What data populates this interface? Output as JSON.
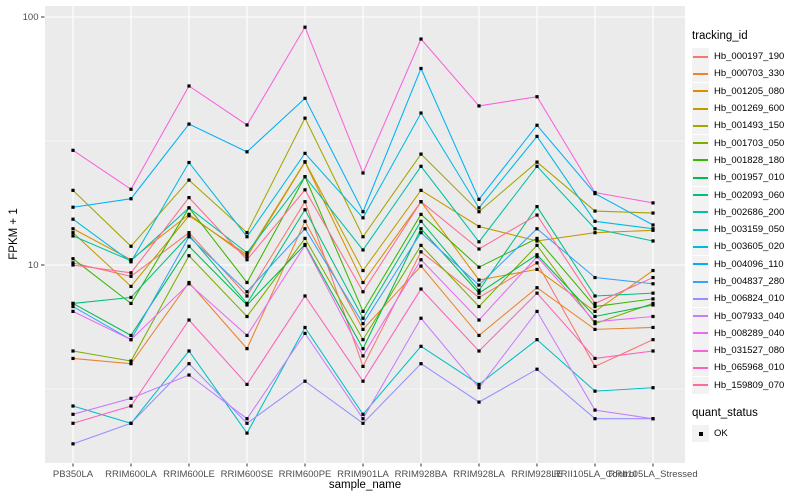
{
  "chart_data": {
    "type": "line",
    "title": "",
    "xlabel": "sample_name",
    "ylabel": "FPKM + 1",
    "legend_title": "tracking_id",
    "legend_position": "right",
    "status_legend": {
      "title": "quant_status",
      "label": "OK"
    },
    "point_shape": "filled-black-square",
    "y_scale": "log10",
    "ylim": [
      1.55,
      112
    ],
    "y_ticks": [
      10,
      100
    ],
    "y_tick_labels": [
      "10",
      "100"
    ],
    "y_minor_ticks": [
      3.162,
      31.62
    ],
    "grid": "white major+minor horizontal, white major vertical, on gray panel",
    "x_categories": [
      "PB350LA",
      "RRIM600LA",
      "RRIM600LE",
      "RRIM600SE",
      "RRIM600PE",
      "RRIM901LA",
      "RRIM928BA",
      "RRIM928LA",
      "RRIM928LE",
      "RRII105LA_Control",
      "RRII105LA_Stressed"
    ],
    "series": [
      {
        "name": "Hb_000197_190",
        "color": "#F8766D",
        "values": [
          10.2,
          9.0,
          13.5,
          7.5,
          18.0,
          3.9,
          11.3,
          7.4,
          10.2,
          3.9,
          5.0
        ]
      },
      {
        "name": "Hb_000703_330",
        "color": "#EA8331",
        "values": [
          4.2,
          4.0,
          8.5,
          4.6,
          15.0,
          5.5,
          9.9,
          5.2,
          8.1,
          5.5,
          5.6
        ]
      },
      {
        "name": "Hb_001205_080",
        "color": "#D89000",
        "values": [
          14.0,
          10.5,
          16.0,
          10.8,
          26.0,
          8.5,
          18.0,
          8.7,
          9.6,
          6.5,
          9.5
        ]
      },
      {
        "name": "Hb_001269_600",
        "color": "#C09B00",
        "values": [
          13.5,
          8.2,
          15.8,
          11.0,
          26.1,
          9.5,
          20.0,
          14.3,
          12.5,
          13.5,
          13.8
        ]
      },
      {
        "name": "Hb_001493_150",
        "color": "#A3A500",
        "values": [
          20.0,
          11.9,
          22.0,
          13.5,
          39.1,
          13.0,
          28.0,
          16.4,
          26.0,
          16.5,
          16.2
        ]
      },
      {
        "name": "Hb_001703_050",
        "color": "#7CAE00",
        "values": [
          4.5,
          4.1,
          10.9,
          6.2,
          12.8,
          5.0,
          12.0,
          6.8,
          12.0,
          5.8,
          7.0
        ]
      },
      {
        "name": "Hb_001828_180",
        "color": "#39B600",
        "values": [
          10.6,
          7.0,
          17.0,
          8.5,
          22.7,
          6.5,
          16.0,
          9.8,
          12.8,
          6.8,
          7.3
        ]
      },
      {
        "name": "Hb_001957_010",
        "color": "#00BB4E",
        "values": [
          7.0,
          5.2,
          11.9,
          6.9,
          12.1,
          4.6,
          14.0,
          7.7,
          11.0,
          6.2,
          6.9
        ]
      },
      {
        "name": "Hb_002093_060",
        "color": "#00BF7D",
        "values": [
          7.0,
          7.4,
          13.2,
          7.0,
          16.7,
          6.1,
          15.0,
          7.9,
          17.2,
          7.5,
          7.7
        ]
      },
      {
        "name": "Hb_002686_200",
        "color": "#00C1A3",
        "values": [
          13.1,
          10.4,
          17.0,
          11.2,
          22.7,
          11.5,
          25.0,
          12.4,
          25.0,
          14.0,
          12.5
        ]
      },
      {
        "name": "Hb_003159_050",
        "color": "#00BFC4",
        "values": [
          2.7,
          2.3,
          4.5,
          2.1,
          5.6,
          2.5,
          4.7,
          3.3,
          5.0,
          3.1,
          3.2
        ]
      },
      {
        "name": "Hb_003605_020",
        "color": "#00BAE0",
        "values": [
          15.3,
          10.3,
          25.9,
          13.0,
          28.2,
          15.5,
          41.0,
          17.0,
          33.0,
          15.0,
          14.0
        ]
      },
      {
        "name": "Hb_004096_110",
        "color": "#00B0F6",
        "values": [
          17.1,
          18.5,
          37.0,
          28.6,
          47.0,
          16.4,
          62.0,
          18.4,
          36.6,
          19.4,
          14.5
        ]
      },
      {
        "name": "Hb_004837_280",
        "color": "#35A2FF",
        "values": [
          6.8,
          5.0,
          13.0,
          7.8,
          14.0,
          5.8,
          13.5,
          8.3,
          14.0,
          8.9,
          8.4
        ]
      },
      {
        "name": "Hb_006824_010",
        "color": "#9590FF",
        "values": [
          1.9,
          2.3,
          4.0,
          2.3,
          3.4,
          2.3,
          4.0,
          2.8,
          3.8,
          2.4,
          2.4
        ]
      },
      {
        "name": "Hb_007933_040",
        "color": "#C77CFF",
        "values": [
          2.5,
          2.9,
          3.6,
          2.4,
          5.3,
          2.4,
          6.1,
          3.2,
          6.5,
          2.6,
          2.4
        ]
      },
      {
        "name": "Hb_008289_040",
        "color": "#E76BF3",
        "values": [
          6.5,
          5.0,
          8.4,
          5.2,
          12.0,
          4.3,
          10.5,
          6.0,
          10.8,
          5.9,
          6.2
        ]
      },
      {
        "name": "Hb_031527_080",
        "color": "#FA62DB",
        "values": [
          29.0,
          20.2,
          52.7,
          36.7,
          91.0,
          23.5,
          81.5,
          43.8,
          47.7,
          19.6,
          17.8
        ]
      },
      {
        "name": "Hb_065968_010",
        "color": "#FF62BC",
        "values": [
          2.3,
          2.7,
          6.0,
          3.3,
          7.5,
          3.4,
          8.0,
          4.5,
          7.7,
          4.2,
          4.5
        ]
      },
      {
        "name": "Hb_159809_070",
        "color": "#FF6A98",
        "values": [
          10.0,
          9.3,
          18.7,
          10.5,
          20.1,
          7.8,
          18.0,
          11.6,
          15.9,
          7.0,
          8.9
        ]
      }
    ]
  },
  "colors": {
    "panel": "#EBEBEB",
    "grid": "#FFFFFF",
    "tick_mark": "#333333",
    "tick_text": "#4D4D4D",
    "point": "#000000",
    "legend_key_bg": "#F2F2F2"
  }
}
